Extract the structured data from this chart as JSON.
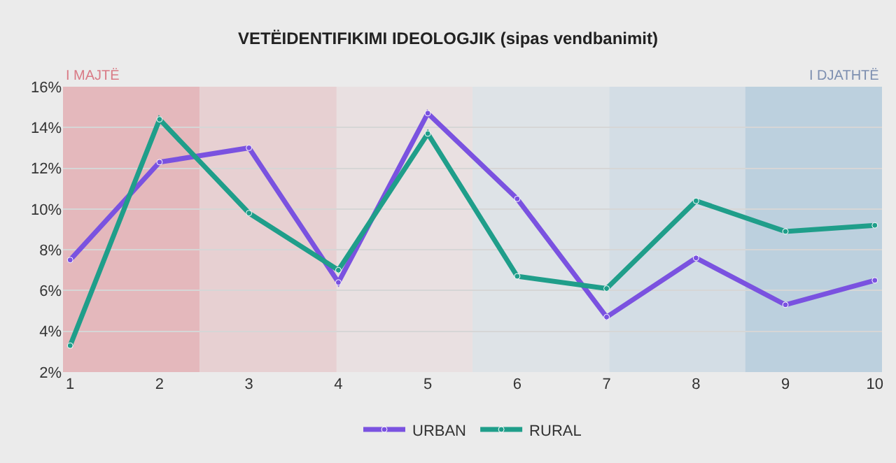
{
  "chart_data": {
    "type": "line",
    "title": "VETËIDENTIFIKIMI IDEOLOGJIK (sipas vendbanimit)",
    "x": [
      1,
      2,
      3,
      4,
      5,
      6,
      7,
      8,
      9,
      10
    ],
    "series": [
      {
        "name": "URBAN",
        "color": "#7a52e0",
        "values": [
          7.5,
          12.3,
          13.0,
          6.4,
          14.7,
          10.5,
          4.7,
          7.6,
          5.3,
          6.5
        ]
      },
      {
        "name": "RURAL",
        "color": "#1f9e8a",
        "values": [
          3.3,
          14.4,
          9.8,
          7.0,
          13.7,
          6.7,
          6.1,
          10.4,
          8.9,
          9.2
        ]
      }
    ],
    "xlim": [
      0.92,
      10.08
    ],
    "xticks": [
      1,
      2,
      3,
      4,
      5,
      6,
      7,
      8,
      9,
      10
    ],
    "ylim": [
      2,
      16
    ],
    "yticks": [
      {
        "value": 2,
        "label": "2%"
      },
      {
        "value": 4,
        "label": "4%"
      },
      {
        "value": 6,
        "label": "6%"
      },
      {
        "value": 8,
        "label": "8%"
      },
      {
        "value": 10,
        "label": "10%"
      },
      {
        "value": 12,
        "label": "12%"
      },
      {
        "value": 14,
        "label": "14%"
      },
      {
        "value": 16,
        "label": "16%"
      }
    ],
    "bands": [
      {
        "axis": "x",
        "from": 0.92,
        "to": 2.45,
        "color": "#e4b8bc"
      },
      {
        "axis": "x",
        "from": 2.45,
        "to": 3.98,
        "color": "#e7d0d2"
      },
      {
        "axis": "x",
        "from": 3.98,
        "to": 5.5,
        "color": "#e9e0e1"
      },
      {
        "axis": "x",
        "from": 5.5,
        "to": 7.03,
        "color": "#dee3e7"
      },
      {
        "axis": "x",
        "from": 7.03,
        "to": 8.55,
        "color": "#d3dde5"
      },
      {
        "axis": "x",
        "from": 8.55,
        "to": 10.08,
        "color": "#bcd0de"
      }
    ],
    "annotations": [
      "I MAJTË",
      "I DJATHTË"
    ],
    "grid": "y",
    "legend": "bottom",
    "marker": "circle",
    "line_style": "solid"
  }
}
